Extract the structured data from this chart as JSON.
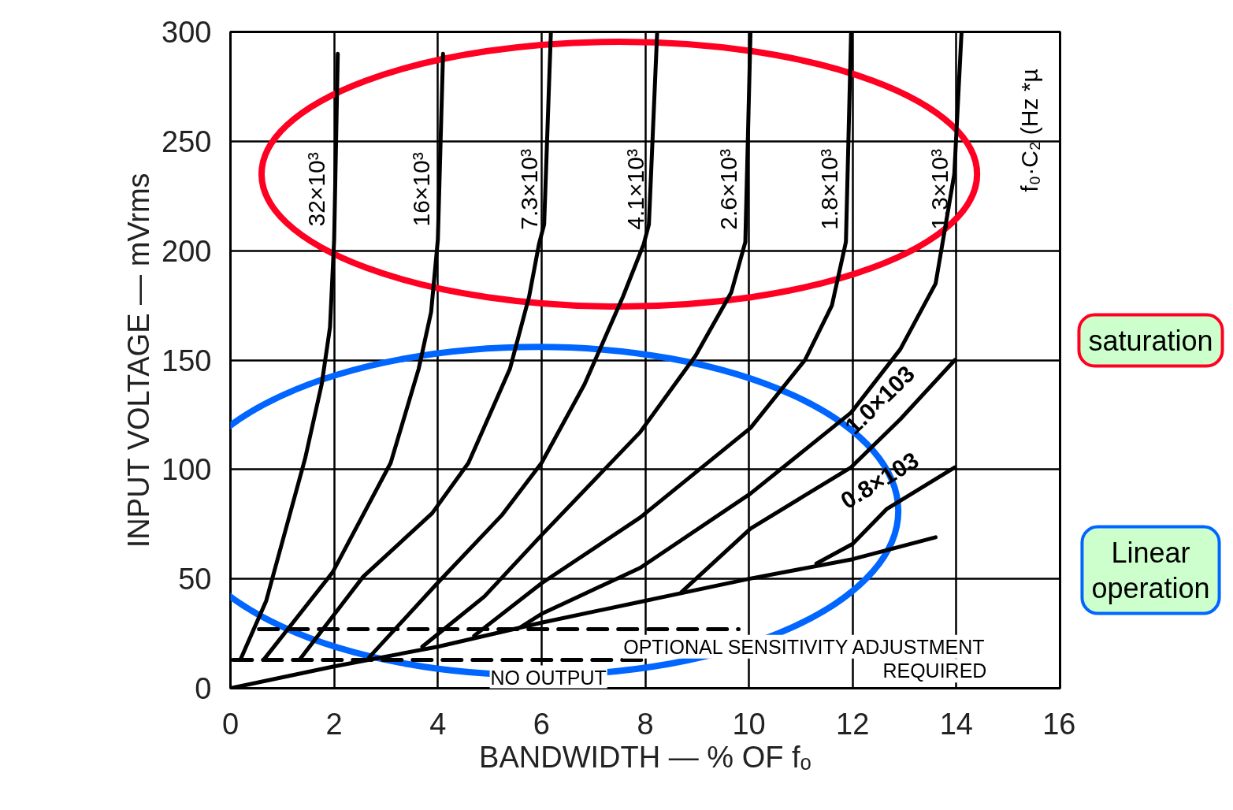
{
  "chart_data": {
    "type": "line",
    "xlabel": "BANDWIDTH — % OF fₒ",
    "ylabel": "INPUT VOLTAGE — mVrms",
    "xlim": [
      0,
      16
    ],
    "ylim": [
      0,
      300
    ],
    "xticks": [
      0,
      2,
      4,
      6,
      8,
      10,
      12,
      14,
      16
    ],
    "yticks": [
      0,
      50,
      100,
      150,
      200,
      250,
      300
    ],
    "grid": true,
    "marker": "none",
    "line_style": "solid",
    "series": [
      {
        "name": "32×10³",
        "color": "#000000",
        "x": [
          0.19,
          0.69,
          1.44,
          1.76,
          1.92,
          2.0,
          2.07
        ],
        "values": [
          13,
          40,
          105,
          139,
          165,
          205,
          290
        ]
      },
      {
        "name": "16×10³",
        "color": "#000000",
        "x": [
          0.64,
          1.97,
          3.09,
          3.63,
          3.87,
          4.0,
          4.1
        ],
        "values": [
          13,
          53,
          103,
          146,
          172,
          205,
          290
        ]
      },
      {
        "name": "7.3×10³",
        "color": "#000000",
        "x": [
          1.33,
          2.56,
          3.89,
          4.59,
          5.39,
          5.76,
          5.95,
          6.05,
          6.18
        ],
        "values": [
          13,
          51,
          80,
          103,
          146,
          179,
          203,
          212,
          300
        ]
      },
      {
        "name": "4.1×10³",
        "color": "#000000",
        "x": [
          2.67,
          3.95,
          5.23,
          6.0,
          6.83,
          7.57,
          7.97,
          8.07,
          8.23
        ],
        "values": [
          14,
          47,
          79,
          103,
          139,
          179,
          203,
          212,
          300
        ]
      },
      {
        "name": "2.6×10³",
        "color": "#000000",
        "x": [
          3.7,
          4.9,
          6.0,
          7.9,
          8.97,
          9.66,
          9.93,
          10.03
        ],
        "values": [
          19,
          42,
          70,
          117,
          152,
          181,
          204,
          300
        ]
      },
      {
        "name": "1.8×10³",
        "color": "#000000",
        "x": [
          4.7,
          6.0,
          7.9,
          10.03,
          11.08,
          11.6,
          11.87,
          11.97
        ],
        "values": [
          24,
          48,
          78,
          119,
          150,
          175,
          204,
          300
        ]
      },
      {
        "name": "1.3×10³",
        "color": "#000000",
        "x": [
          5.6,
          6.0,
          7.9,
          10.03,
          11.97,
          12.92,
          13.6,
          13.96,
          14.1
        ],
        "values": [
          28,
          34,
          55,
          89,
          126,
          155,
          185,
          235,
          300
        ]
      },
      {
        "name": "1.0×103",
        "color": "#000000",
        "x": [
          8.7,
          10.03,
          11.97,
          12.92,
          13.97
        ],
        "values": [
          44,
          73,
          101,
          123,
          150
        ]
      },
      {
        "name": "0.8×103",
        "color": "#000000",
        "x": [
          11.3,
          12.0,
          12.66,
          13.97
        ],
        "values": [
          57,
          66,
          82,
          101
        ]
      },
      {
        "color": "#000000",
        "x": [
          0,
          2,
          4,
          6,
          8,
          10,
          12,
          13.6
        ],
        "values": [
          0,
          10,
          19,
          30,
          40,
          50,
          59,
          69
        ]
      },
      {
        "color": "#000000",
        "line_style": "dashed",
        "x": [
          0.55,
          9.8
        ],
        "values": [
          27,
          27
        ]
      },
      {
        "color": "#000000",
        "line_style": "dashed",
        "x": [
          0.05,
          8.0
        ],
        "values": [
          13,
          13
        ]
      }
    ],
    "annotations": [
      "f₀·C₂ (Hz *µ",
      "saturation",
      "Linear operation",
      "OPTIONAL SENSITIVITY ADJUSTMENT\nREQUIRED",
      "NO OUTPUT"
    ]
  }
}
